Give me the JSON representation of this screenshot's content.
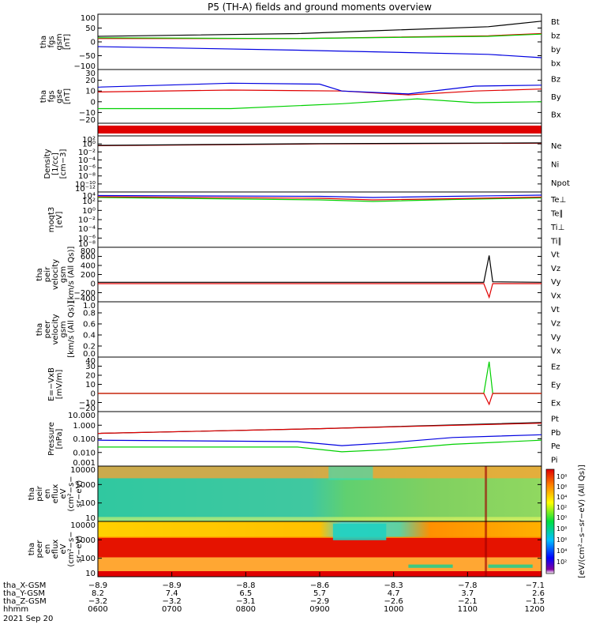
{
  "title": "P5 (TH-A) fields and ground moments overview",
  "colors": {
    "black": "#000000",
    "red": "#e00000",
    "green": "#00d000",
    "blue": "#0000e0",
    "cyan": "#00c0e0"
  },
  "chart_data": [
    {
      "type": "line",
      "ylabel": [
        "tha",
        "fgs",
        "gsm",
        "[nT]"
      ],
      "yticks": [
        "100",
        "50",
        "0",
        "−50",
        "−100"
      ],
      "ylim": [
        -100,
        100
      ],
      "legend": [
        {
          "name": "Bt",
          "color": "black"
        },
        {
          "name": "bz",
          "color": "red"
        },
        {
          "name": "by",
          "color": "green"
        },
        {
          "name": "bx",
          "color": "blue"
        }
      ],
      "series": [
        {
          "name": "Bt",
          "color": "black",
          "x": [
            0,
            0.45,
            0.62,
            0.88,
            1
          ],
          "y": [
            20,
            30,
            40,
            55,
            75
          ]
        },
        {
          "name": "bz",
          "color": "red",
          "x": [
            0,
            0.45,
            0.88,
            1
          ],
          "y": [
            12,
            12,
            22,
            30
          ]
        },
        {
          "name": "by",
          "color": "green",
          "x": [
            0,
            0.45,
            0.88,
            1
          ],
          "y": [
            15,
            12,
            20,
            28
          ]
        },
        {
          "name": "bx",
          "color": "blue",
          "x": [
            0,
            0.45,
            0.88,
            1
          ],
          "y": [
            -17,
            -30,
            -45,
            -57
          ]
        }
      ]
    },
    {
      "type": "line",
      "ylabel": [
        "tha",
        "fgs",
        "gse",
        "[nT]"
      ],
      "yticks": [
        "30",
        "20",
        "10",
        "0",
        "−10",
        "−20"
      ],
      "ylim": [
        -25,
        30
      ],
      "legend": [
        {
          "name": "Bz",
          "color": "red"
        },
        {
          "name": "By",
          "color": "green"
        },
        {
          "name": "Bx",
          "color": "blue"
        }
      ],
      "series": [
        {
          "name": "Bz",
          "color": "red",
          "x": [
            0,
            0.3,
            0.55,
            0.7,
            0.85,
            1
          ],
          "y": [
            7,
            9,
            8,
            4,
            8,
            10
          ]
        },
        {
          "name": "By",
          "color": "green",
          "x": [
            0,
            0.3,
            0.55,
            0.72,
            0.85,
            1
          ],
          "y": [
            -10,
            -10,
            -5,
            0,
            -4,
            -3
          ]
        },
        {
          "name": "Bx",
          "color": "blue",
          "x": [
            0,
            0.3,
            0.5,
            0.55,
            0.7,
            0.85,
            1
          ],
          "y": [
            12,
            16,
            15,
            8,
            5,
            13,
            14
          ]
        }
      ]
    },
    {
      "type": "line",
      "ylabel": [
        "Density",
        "[1/cc]",
        "[cm−3]"
      ],
      "yticks": [
        "10²",
        "10⁰",
        "10⁻²",
        "10⁻⁴",
        "10⁻⁶",
        "10⁻⁸",
        "10⁻¹⁰",
        "10⁻¹²"
      ],
      "ylim": [
        -13,
        3
      ],
      "legend": [
        {
          "name": "Ne",
          "color": "red"
        },
        {
          "name": "Ni",
          "color": "black"
        },
        {
          "name": "Npot",
          "color": "blue"
        }
      ],
      "series": [
        {
          "name": "Ne",
          "color": "red",
          "x": [
            0,
            0.5,
            1
          ],
          "y": [
            0.2,
            0.7,
            0.9
          ]
        },
        {
          "name": "Ni",
          "color": "black",
          "x": [
            0,
            0.5,
            1
          ],
          "y": [
            0.3,
            0.8,
            1.0
          ]
        }
      ]
    },
    {
      "type": "line",
      "ylabel": [
        "moqt3",
        "[eV]"
      ],
      "yticks": [
        "10⁴",
        "10²",
        "10⁰",
        "10⁻²",
        "10⁻⁴",
        "10⁻⁶",
        "10⁻⁸"
      ],
      "ylim": [
        -9,
        5
      ],
      "legend": [
        {
          "name": "Te⊥",
          "color": "red"
        },
        {
          "name": "Te∥",
          "color": "black"
        },
        {
          "name": "Ti⊥",
          "color": "blue"
        },
        {
          "name": "Ti∥",
          "color": "green"
        }
      ],
      "series": [
        {
          "name": "Ti∥",
          "color": "green",
          "x": [
            0,
            0.5,
            0.62,
            0.8,
            1
          ],
          "y": [
            3.6,
            3.0,
            2.6,
            3.1,
            3.5
          ]
        },
        {
          "name": "Te⊥",
          "color": "red",
          "x": [
            0,
            0.5,
            0.62,
            0.8,
            1
          ],
          "y": [
            3.8,
            3.4,
            3.0,
            3.3,
            3.7
          ]
        },
        {
          "name": "Ti⊥",
          "color": "blue",
          "x": [
            0,
            0.5,
            0.62,
            0.8,
            1
          ],
          "y": [
            4.1,
            3.9,
            3.6,
            3.9,
            4.2
          ]
        }
      ]
    },
    {
      "type": "line",
      "ylabel": [
        "tha",
        "peir",
        "velocity",
        "gsm",
        "[km/s (All Qs)]"
      ],
      "yticks": [
        "800",
        "600",
        "400",
        "200",
        "0",
        "−200",
        "−400"
      ],
      "ylim": [
        -400,
        800
      ],
      "legend": [
        {
          "name": "Vt",
          "color": "black"
        },
        {
          "name": "Vz",
          "color": "red"
        },
        {
          "name": "Vy",
          "color": "green"
        },
        {
          "name": "Vx",
          "color": "blue"
        }
      ],
      "series": [
        {
          "name": "Vt",
          "color": "black",
          "x": [
            0,
            0.87,
            0.882,
            0.89,
            1
          ],
          "y": [
            30,
            30,
            620,
            40,
            30
          ]
        },
        {
          "name": "Vz",
          "color": "red",
          "x": [
            0,
            0.87,
            0.882,
            0.89,
            1
          ],
          "y": [
            0,
            0,
            -300,
            0,
            0
          ]
        }
      ]
    },
    {
      "type": "line",
      "ylabel": [
        "tha",
        "peer",
        "velocity",
        "gsm",
        "[km/s (All Qs)]"
      ],
      "yticks": [
        "1.0",
        "0.8",
        "0.6",
        "0.4",
        "0.2",
        "0.0"
      ],
      "ylim": [
        0,
        1
      ],
      "legend": [
        {
          "name": "Vt",
          "color": "black"
        },
        {
          "name": "Vz",
          "color": "red"
        },
        {
          "name": "Vy",
          "color": "green"
        },
        {
          "name": "Vx",
          "color": "blue"
        }
      ],
      "series": []
    },
    {
      "type": "line",
      "ylabel": [
        "E=−VxB",
        "[mV/m]"
      ],
      "yticks": [
        "40",
        "30",
        "20",
        "10",
        "0",
        "−10",
        "−20"
      ],
      "ylim": [
        -20,
        40
      ],
      "legend": [
        {
          "name": "Ez",
          "color": "red"
        },
        {
          "name": "Ey",
          "color": "green"
        },
        {
          "name": "Ex",
          "color": "blue"
        }
      ],
      "series": [
        {
          "name": "Ey",
          "color": "green",
          "x": [
            0,
            0.87,
            0.882,
            0.89,
            1
          ],
          "y": [
            0,
            0,
            35,
            0,
            0
          ]
        },
        {
          "name": "Ez",
          "color": "red",
          "x": [
            0,
            0.87,
            0.882,
            0.89,
            1
          ],
          "y": [
            0,
            0,
            -12,
            0,
            0
          ]
        }
      ]
    },
    {
      "type": "line",
      "ylabel": [
        "Pressure",
        "[nPa]"
      ],
      "yticks": [
        "10.000",
        "1.000",
        "0.100",
        "0.010",
        "0.001"
      ],
      "ylim": [
        -3,
        1
      ],
      "log": true,
      "legend": [
        {
          "name": "Pt",
          "color": "black"
        },
        {
          "name": "Pb",
          "color": "red"
        },
        {
          "name": "Pe",
          "color": "green"
        },
        {
          "name": "Pi",
          "color": "blue"
        }
      ],
      "series": [
        {
          "name": "Pt",
          "color": "black",
          "x": [
            0,
            0.5,
            1
          ],
          "y": [
            -0.6,
            -0.25,
            0.2
          ]
        },
        {
          "name": "Pb",
          "color": "red",
          "x": [
            0,
            0.5,
            1
          ],
          "y": [
            -0.6,
            -0.25,
            0.15
          ]
        },
        {
          "name": "Pi",
          "color": "blue",
          "x": [
            0,
            0.45,
            0.55,
            0.65,
            0.8,
            1
          ],
          "y": [
            -1.1,
            -1.2,
            -1.5,
            -1.3,
            -0.9,
            -0.7
          ]
        },
        {
          "name": "Pe",
          "color": "green",
          "x": [
            0,
            0.45,
            0.55,
            0.65,
            0.8,
            1
          ],
          "y": [
            -1.6,
            -1.6,
            -1.95,
            -1.8,
            -1.4,
            -1.1
          ]
        }
      ]
    },
    {
      "type": "heatmap",
      "ylabel": [
        "tha",
        "peir",
        "en",
        "eflux",
        "eV",
        "(cm²−s−",
        "sr−eV)"
      ],
      "yticks": [
        "10000",
        "1000",
        "100",
        "10"
      ]
    },
    {
      "type": "heatmap",
      "ylabel": [
        "tha",
        "peer",
        "en",
        "eflux",
        "eV",
        "(cm²−s−",
        "sr−eV)"
      ],
      "yticks": [
        "10000",
        "1000",
        "100",
        "10"
      ]
    }
  ],
  "colorbar": {
    "label": "[eV/(cm²−s−sr−eV) (All Qs)]",
    "ticks_top": [
      "10⁸",
      "10⁶",
      "10⁴",
      "10²",
      "10⁰"
    ],
    "ticks_bottom": [
      "10⁸",
      "10⁶",
      "10⁴",
      "10²"
    ]
  },
  "xaxis": {
    "rows": [
      {
        "label": "tha_X-GSM",
        "values": [
          "−8.9",
          "−8.9",
          "−8.8",
          "−8.6",
          "−8.3",
          "−7.8",
          "−7.1"
        ]
      },
      {
        "label": "tha_Y-GSM",
        "values": [
          "8.2",
          "7.4",
          "6.5",
          "5.7",
          "4.7",
          "3.7",
          "2.6"
        ]
      },
      {
        "label": "tha_Z-GSM",
        "values": [
          "−3.2",
          "−3.2",
          "−3.1",
          "−2.9",
          "−2.6",
          "−2.1",
          "−1.5"
        ]
      },
      {
        "label": "hhmm",
        "values": [
          "0600",
          "0700",
          "0800",
          "0900",
          "1000",
          "1100",
          "1200"
        ]
      }
    ],
    "date": "2021 Sep 20"
  }
}
